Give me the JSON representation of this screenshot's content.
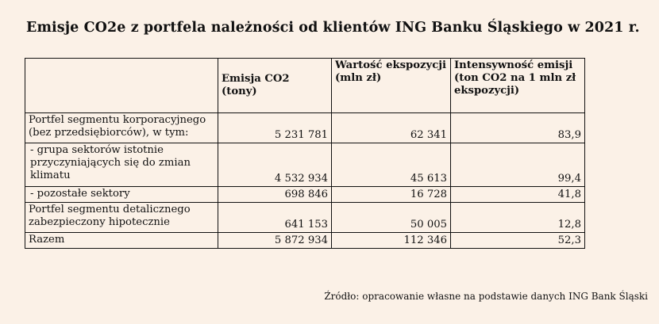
{
  "title": "Emisje CO2e z portfela należności od klientów ING Banku Śląskiego w 2021 r.",
  "table": {
    "headers": [
      "",
      "Emisja CO2 (tony)",
      "Wartość ekspozycji (mln zł)",
      "Intensywność emisji (ton CO2 na 1 mln zł ekspozycji)"
    ],
    "rows": [
      {
        "label": "Portfel segmentu korporacyjnego (bez przedsiębiorców), w tym:",
        "emisja": "5 231 781",
        "wartosc": "62 341",
        "intensywnosc": "83,9"
      },
      {
        "label": " - grupa sektorów istotnie przyczyniających się  do zmian klimatu",
        "emisja": "4 532 934",
        "wartosc": "45 613",
        "intensywnosc": "99,4"
      },
      {
        "label": " - pozostałe sektory",
        "emisja": "698 846",
        "wartosc": "16 728",
        "intensywnosc": "41,8"
      },
      {
        "label": "Portfel segmentu detalicznego zabezpieczony hipotecznie",
        "emisja": "641 153",
        "wartosc": "50 005",
        "intensywnosc": "12,8"
      },
      {
        "label": "Razem",
        "emisja": "5 872 934",
        "wartosc": "112 346",
        "intensywnosc": "52,3"
      }
    ]
  },
  "source": "Źródło: opracowanie własne na podstawie danych ING Bank Śląski"
}
